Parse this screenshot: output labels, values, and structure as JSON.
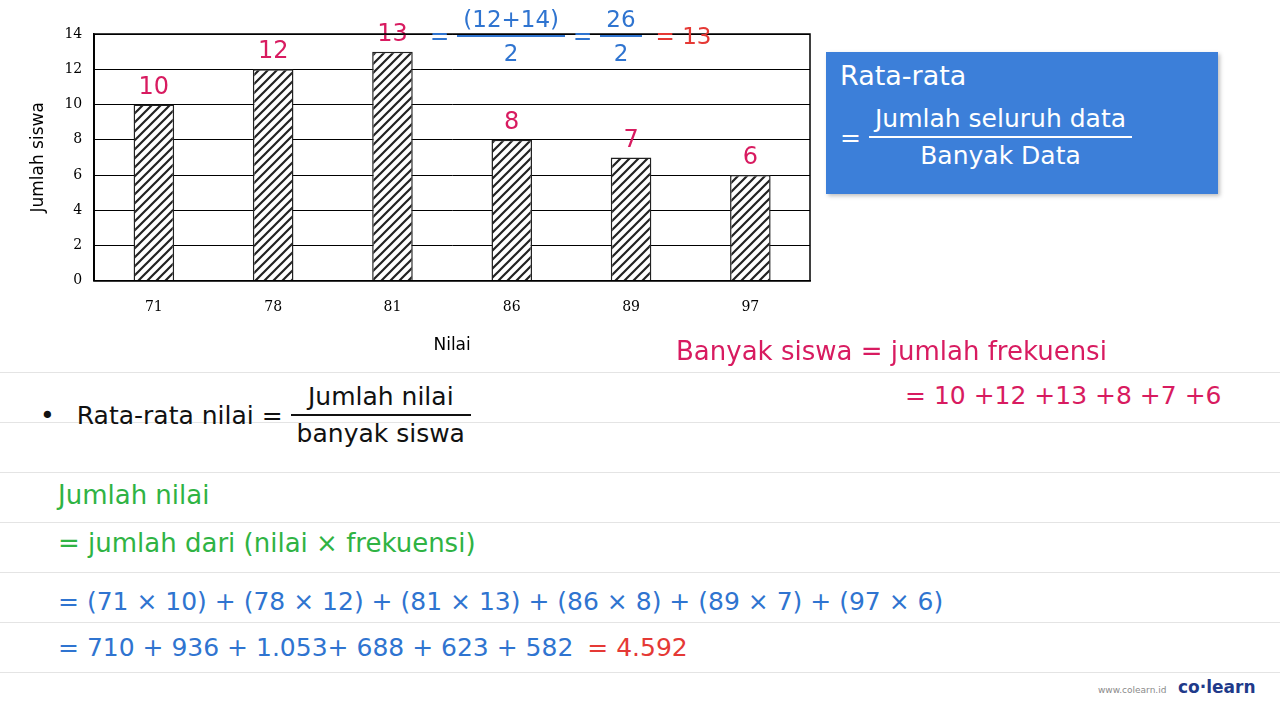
{
  "chart_data": {
    "type": "bar",
    "categories": [
      "71",
      "78",
      "81",
      "86",
      "89",
      "97"
    ],
    "values": [
      10,
      12,
      13,
      8,
      7,
      6
    ],
    "color": "#222222",
    "x_label": "Nilai",
    "y_label": "Jumlah siswa",
    "ylim": [
      0,
      14
    ],
    "yticks": [
      0,
      2,
      4,
      6,
      8,
      10,
      12,
      14
    ],
    "grid": true,
    "data_labels": true
  },
  "notes": {
    "fraction_step": {
      "prefix": "=",
      "parts": [
        {
          "numerator": "(12+14)",
          "denominator": "2"
        },
        {
          "numerator": "26",
          "denominator": "2"
        }
      ],
      "separator": "=",
      "result": "= 13"
    },
    "mean_formula_box": {
      "title": "Rata-rata",
      "prefix": "=",
      "numerator": "Jumlah seluruh data",
      "denominator": "Banyak Data"
    },
    "students": {
      "text": "Banyak siswa = jumlah frekuensi",
      "sum": "= 10 +12 +13 +8 +7 +6"
    },
    "mean_value": {
      "bullet": "•",
      "lhs": "Rata-rata nilai =",
      "numerator": "Jumlah nilai",
      "denominator": "banyak siswa"
    },
    "total": {
      "title": "Jumlah nilai",
      "definition": "= jumlah dari (nilai × frekuensi)",
      "products": "= (71 × 10) + (78 × 12) + (81 × 13) + (86 × 8) + (89 × 7) + (97 × 6)",
      "sums": "= 710 + 936 + 1.053+ 688 + 623 + 582",
      "result": "= 4.592"
    },
    "brand": {
      "logo": "co·learn",
      "url": "www.colearn.id"
    }
  }
}
